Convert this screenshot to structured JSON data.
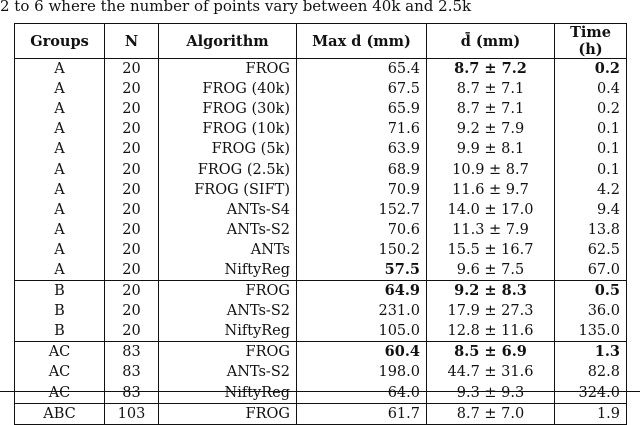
{
  "caption": "2 to 6 where the number of points vary between 40k and 2.5k",
  "headers": {
    "groups": "Groups",
    "n": "N",
    "algorithm": "Algorithm",
    "max_d": "Max d (mm)",
    "mean_d": "d̄ (mm)",
    "time": "Time (h)"
  },
  "rows": [
    {
      "group": "A",
      "n": "20",
      "algorithm": "FROG",
      "max": "65.4",
      "mean": "8.7 ± 7.2",
      "time": "0.2",
      "bold": [
        "mean",
        "time"
      ],
      "start": true
    },
    {
      "group": "A",
      "n": "20",
      "algorithm": "FROG (40k)",
      "max": "67.5",
      "mean": "8.7 ± 7.1",
      "time": "0.4",
      "bold": []
    },
    {
      "group": "A",
      "n": "20",
      "algorithm": "FROG (30k)",
      "max": "65.9",
      "mean": "8.7 ± 7.1",
      "time": "0.2",
      "bold": []
    },
    {
      "group": "A",
      "n": "20",
      "algorithm": "FROG (10k)",
      "max": "71.6",
      "mean": "9.2 ± 7.9",
      "time": "0.1",
      "bold": []
    },
    {
      "group": "A",
      "n": "20",
      "algorithm": "FROG (5k)",
      "max": "63.9",
      "mean": "9.9 ± 8.1",
      "time": "0.1",
      "bold": []
    },
    {
      "group": "A",
      "n": "20",
      "algorithm": "FROG (2.5k)",
      "max": "68.9",
      "mean": "10.9 ± 8.7",
      "time": "0.1",
      "bold": []
    },
    {
      "group": "A",
      "n": "20",
      "algorithm": "FROG (SIFT)",
      "max": "70.9",
      "mean": "11.6 ± 9.7",
      "time": "4.2",
      "bold": []
    },
    {
      "group": "A",
      "n": "20",
      "algorithm": "ANTs-S4",
      "max": "152.7",
      "mean": "14.0 ± 17.0",
      "time": "9.4",
      "bold": []
    },
    {
      "group": "A",
      "n": "20",
      "algorithm": "ANTs-S2",
      "max": "70.6",
      "mean": "11.3 ± 7.9",
      "time": "13.8",
      "bold": []
    },
    {
      "group": "A",
      "n": "20",
      "algorithm": "ANTs",
      "max": "150.2",
      "mean": "15.5 ± 16.7",
      "time": "62.5",
      "bold": []
    },
    {
      "group": "A",
      "n": "20",
      "algorithm": "NiftyReg",
      "max": "57.5",
      "mean": "9.6 ± 7.5",
      "time": "67.0",
      "bold": [
        "max"
      ]
    },
    {
      "group": "B",
      "n": "20",
      "algorithm": "FROG",
      "max": "64.9",
      "mean": "9.2 ± 8.3",
      "time": "0.5",
      "bold": [
        "max",
        "mean",
        "time"
      ],
      "start": true
    },
    {
      "group": "B",
      "n": "20",
      "algorithm": "ANTs-S2",
      "max": "231.0",
      "mean": "17.9 ± 27.3",
      "time": "36.0",
      "bold": []
    },
    {
      "group": "B",
      "n": "20",
      "algorithm": "NiftyReg",
      "max": "105.0",
      "mean": "12.8 ± 11.6",
      "time": "135.0",
      "bold": []
    },
    {
      "group": "AC",
      "n": "83",
      "algorithm": "FROG",
      "max": "60.4",
      "mean": "8.5 ± 6.9",
      "time": "1.3",
      "bold": [
        "max",
        "mean",
        "time"
      ],
      "start": true
    },
    {
      "group": "AC",
      "n": "83",
      "algorithm": "ANTs-S2",
      "max": "198.0",
      "mean": "44.7 ± 31.6",
      "time": "82.8",
      "bold": []
    },
    {
      "group": "AC",
      "n": "83",
      "algorithm": "NiftyReg",
      "max": "64.0",
      "mean": "9.3 ± 9.3",
      "time": "324.0",
      "bold": []
    },
    {
      "group": "ABC",
      "n": "103",
      "algorithm": "FROG",
      "max": "61.7",
      "mean": "8.7 ± 7.0",
      "time": "1.9",
      "bold": [],
      "start": true,
      "last": true
    }
  ]
}
